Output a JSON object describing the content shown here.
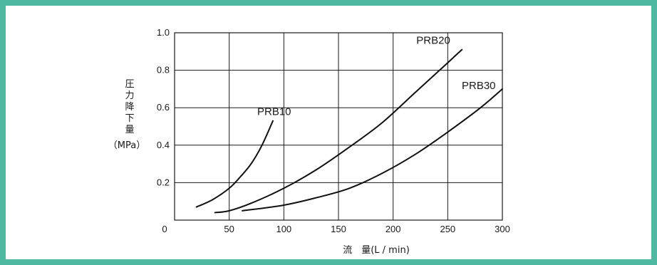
{
  "colors": {
    "frame": "#4fb8a0",
    "grid": "#1a1a1a",
    "curve": "#111111"
  },
  "chart_data": {
    "type": "line",
    "ylabel_chars": [
      "圧",
      "力",
      "降",
      "下",
      "量"
    ],
    "ylabel_unit": "（MPa）",
    "xlabel": "流　量(L / min)",
    "xlim": [
      0,
      300
    ],
    "ylim": [
      0,
      1.0
    ],
    "x_ticks": [
      "0",
      "50",
      "100",
      "150",
      "200",
      "250",
      "300"
    ],
    "y_ticks": [
      "0.2",
      "0.4",
      "0.6",
      "0.8",
      "1.0"
    ],
    "series": [
      {
        "name": "PRB10",
        "x": [
          20,
          35,
          50,
          60,
          70,
          80,
          90
        ],
        "y": [
          0.07,
          0.11,
          0.17,
          0.23,
          0.3,
          0.4,
          0.53
        ]
      },
      {
        "name": "PRB20",
        "x": [
          37,
          50,
          70,
          100,
          130,
          160,
          190,
          220,
          250,
          263
        ],
        "y": [
          0.04,
          0.05,
          0.09,
          0.17,
          0.27,
          0.39,
          0.52,
          0.68,
          0.84,
          0.91
        ]
      },
      {
        "name": "PRB30",
        "x": [
          62,
          100,
          130,
          160,
          190,
          220,
          250,
          280,
          300
        ],
        "y": [
          0.05,
          0.08,
          0.12,
          0.17,
          0.25,
          0.35,
          0.47,
          0.6,
          0.7
        ]
      }
    ]
  }
}
